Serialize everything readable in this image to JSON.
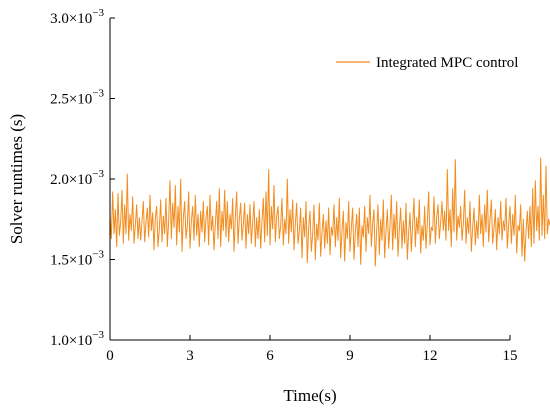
{
  "chart_data": {
    "type": "line",
    "title": "",
    "xlabel": "Time(s)",
    "ylabel": "Solver runtimes (s)",
    "xlim": [
      0,
      15
    ],
    "ylim": [
      0.001,
      0.003
    ],
    "x_ticks": [
      0,
      3,
      6,
      9,
      12,
      15
    ],
    "x_tick_labels": [
      "0",
      "3",
      "6",
      "9",
      "12",
      "15"
    ],
    "y_ticks": [
      0.001,
      0.0015,
      0.002,
      0.0025,
      0.003
    ],
    "y_tick_labels": [
      {
        "mantissa": "1.0×10",
        "exp": "−3"
      },
      {
        "mantissa": "1.5×10",
        "exp": "−3"
      },
      {
        "mantissa": "2.0×10",
        "exp": "−3"
      },
      {
        "mantissa": "2.5×10",
        "exp": "−3"
      },
      {
        "mantissa": "3.0×10",
        "exp": "−3"
      }
    ],
    "grid": false,
    "legend_position": "top-right",
    "series": [
      {
        "name": "Integrated MPC control",
        "color": "#F28C1E",
        "x_start": 0,
        "x_step": 0.05,
        "values": [
          0.00178,
          0.00163,
          0.00192,
          0.00166,
          0.00181,
          0.00158,
          0.00191,
          0.00165,
          0.00173,
          0.00193,
          0.0016,
          0.00184,
          0.00166,
          0.00203,
          0.00162,
          0.00178,
          0.00168,
          0.00189,
          0.0016,
          0.00171,
          0.00184,
          0.00163,
          0.00176,
          0.00162,
          0.00174,
          0.00186,
          0.00161,
          0.00173,
          0.00182,
          0.00164,
          0.0019,
          0.00168,
          0.00179,
          0.00156,
          0.00176,
          0.00183,
          0.00158,
          0.00169,
          0.00187,
          0.00161,
          0.00177,
          0.00166,
          0.00188,
          0.00158,
          0.00174,
          0.00199,
          0.00163,
          0.00185,
          0.0017,
          0.00196,
          0.00159,
          0.00183,
          0.00167,
          0.002,
          0.00155,
          0.00176,
          0.00186,
          0.00163,
          0.00171,
          0.00192,
          0.00157,
          0.00174,
          0.00183,
          0.00162,
          0.0019,
          0.00165,
          0.00178,
          0.00158,
          0.0018,
          0.00167,
          0.00186,
          0.00161,
          0.00176,
          0.00183,
          0.00159,
          0.0019,
          0.00168,
          0.00177,
          0.00156,
          0.00172,
          0.00186,
          0.00163,
          0.00194,
          0.00158,
          0.0018,
          0.00168,
          0.00193,
          0.00164,
          0.00186,
          0.00161,
          0.00178,
          0.00169,
          0.00188,
          0.00155,
          0.00176,
          0.00192,
          0.0016,
          0.00175,
          0.00185,
          0.00162,
          0.00172,
          0.00185,
          0.00157,
          0.00178,
          0.00166,
          0.00184,
          0.0016,
          0.00173,
          0.00186,
          0.00158,
          0.00176,
          0.00163,
          0.00181,
          0.00157,
          0.00174,
          0.00188,
          0.00161,
          0.00192,
          0.00165,
          0.00206,
          0.00159,
          0.00183,
          0.00169,
          0.00196,
          0.00161,
          0.00177,
          0.00183,
          0.00163,
          0.00171,
          0.00188,
          0.00159,
          0.00175,
          0.00166,
          0.002,
          0.0016,
          0.00181,
          0.00167,
          0.00187,
          0.00156,
          0.00172,
          0.00185,
          0.0016,
          0.00168,
          0.00182,
          0.00151,
          0.00176,
          0.00164,
          0.00186,
          0.00148,
          0.0017,
          0.0018,
          0.00155,
          0.00166,
          0.00184,
          0.0015,
          0.00172,
          0.00162,
          0.00185,
          0.00152,
          0.00167,
          0.00178,
          0.00157,
          0.00174,
          0.0016,
          0.00182,
          0.00153,
          0.0017,
          0.00165,
          0.00184,
          0.00158,
          0.00176,
          0.00162,
          0.00188,
          0.00151,
          0.00168,
          0.0018,
          0.00149,
          0.00173,
          0.00163,
          0.00186,
          0.00155,
          0.0017,
          0.00182,
          0.0015,
          0.00167,
          0.00178,
          0.00158,
          0.00182,
          0.00147,
          0.00171,
          0.00164,
          0.00183,
          0.00155,
          0.00176,
          0.00166,
          0.0019,
          0.00158,
          0.00172,
          0.00181,
          0.00146,
          0.00168,
          0.00184,
          0.00153,
          0.00175,
          0.00162,
          0.00187,
          0.00151,
          0.00168,
          0.00181,
          0.00157,
          0.00171,
          0.0019,
          0.00156,
          0.00178,
          0.00163,
          0.00186,
          0.00152,
          0.00169,
          0.00182,
          0.00157,
          0.00174,
          0.0016,
          0.00185,
          0.0015,
          0.00167,
          0.00179,
          0.00155,
          0.00172,
          0.00188,
          0.00158,
          0.00176,
          0.00166,
          0.00187,
          0.00154,
          0.00171,
          0.00162,
          0.00183,
          0.00157,
          0.00173,
          0.00192,
          0.00159,
          0.0017,
          0.00168,
          0.00189,
          0.0016,
          0.00176,
          0.00184,
          0.00163,
          0.00173,
          0.00186,
          0.00168,
          0.0018,
          0.00162,
          0.00206,
          0.00168,
          0.00181,
          0.00158,
          0.00194,
          0.00167,
          0.00212,
          0.00162,
          0.00177,
          0.0017,
          0.00183,
          0.00162,
          0.00172,
          0.00193,
          0.0016,
          0.00176,
          0.00166,
          0.00186,
          0.00155,
          0.0017,
          0.00182,
          0.00159,
          0.00174,
          0.00163,
          0.0019,
          0.00166,
          0.00178,
          0.00158,
          0.00184,
          0.00167,
          0.00193,
          0.00161,
          0.00175,
          0.00187,
          0.0016,
          0.00169,
          0.00181,
          0.00156,
          0.00176,
          0.00166,
          0.00186,
          0.00162,
          0.00174,
          0.00168,
          0.00188,
          0.00157,
          0.00172,
          0.00183,
          0.0016,
          0.00178,
          0.00165,
          0.0019,
          0.00154,
          0.00171,
          0.00168,
          0.00184,
          0.00152,
          0.00175,
          0.00149,
          0.00167,
          0.0018,
          0.00163,
          0.00183,
          0.00158,
          0.00194,
          0.0016,
          0.00199,
          0.00168,
          0.00183,
          0.00162,
          0.00213,
          0.00165,
          0.0019,
          0.00163,
          0.00208,
          0.00166,
          0.00175,
          0.00171
        ]
      }
    ]
  }
}
